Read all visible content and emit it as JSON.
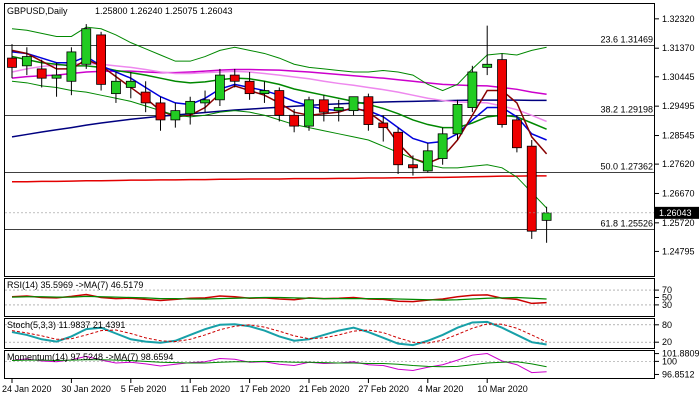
{
  "chart_data": {
    "type": "candlestick",
    "title": "GBPUSD,Daily",
    "ohlc_readout": [
      "1.25800",
      "1.26240",
      "1.25075",
      "1.26043"
    ],
    "current_price": 1.26043,
    "current_price_label": "1.26043",
    "colors": {
      "up": "#22cc22",
      "down": "#ee0000",
      "wick": "#000000",
      "price_tag_bg": "#000000",
      "price_tag_text": "#ffffff"
    },
    "y_axis": {
      "range": [
        1.24,
        1.328
      ],
      "ticks": [
        "1.32320",
        "1.31370",
        "1.30445",
        "1.29495",
        "1.28545",
        "1.27620",
        "1.26670",
        "1.25720",
        "1.24795"
      ]
    },
    "x_labels": [
      {
        "label": "24 Jan 2020",
        "index": 0
      },
      {
        "label": "30 Jan 2020",
        "index": 4
      },
      {
        "label": "5 Feb 2020",
        "index": 8
      },
      {
        "label": "11 Feb 2020",
        "index": 12
      },
      {
        "label": "17 Feb 2020",
        "index": 16
      },
      {
        "label": "21 Feb 2020",
        "index": 20
      },
      {
        "label": "27 Feb 2020",
        "index": 24
      },
      {
        "label": "4 Mar 2020",
        "index": 28
      },
      {
        "label": "10 Mar 2020",
        "index": 32
      }
    ],
    "candles": [
      {
        "o": 1.3105,
        "h": 1.315,
        "l": 1.304,
        "c": 1.3075
      },
      {
        "o": 1.308,
        "h": 1.314,
        "l": 1.305,
        "c": 1.311
      },
      {
        "o": 1.307,
        "h": 1.31,
        "l": 1.301,
        "c": 1.304
      },
      {
        "o": 1.304,
        "h": 1.309,
        "l": 1.298,
        "c": 1.305
      },
      {
        "o": 1.303,
        "h": 1.314,
        "l": 1.2985,
        "c": 1.3125
      },
      {
        "o": 1.3085,
        "h": 1.3215,
        "l": 1.307,
        "c": 1.32
      },
      {
        "o": 1.318,
        "h": 1.319,
        "l": 1.3,
        "c": 1.302
      },
      {
        "o": 1.299,
        "h": 1.306,
        "l": 1.296,
        "c": 1.303
      },
      {
        "o": 1.301,
        "h": 1.306,
        "l": 1.2975,
        "c": 1.303
      },
      {
        "o": 1.2995,
        "h": 1.303,
        "l": 1.293,
        "c": 1.296
      },
      {
        "o": 1.296,
        "h": 1.298,
        "l": 1.287,
        "c": 1.2905
      },
      {
        "o": 1.2905,
        "h": 1.296,
        "l": 1.288,
        "c": 1.2935
      },
      {
        "o": 1.2925,
        "h": 1.298,
        "l": 1.289,
        "c": 1.2965
      },
      {
        "o": 1.296,
        "h": 1.3,
        "l": 1.293,
        "c": 1.297
      },
      {
        "o": 1.297,
        "h": 1.307,
        "l": 1.295,
        "c": 1.305
      },
      {
        "o": 1.305,
        "h": 1.307,
        "l": 1.301,
        "c": 1.303
      },
      {
        "o": 1.303,
        "h": 1.306,
        "l": 1.297,
        "c": 1.299
      },
      {
        "o": 1.299,
        "h": 1.303,
        "l": 1.296,
        "c": 1.3
      },
      {
        "o": 1.3,
        "h": 1.301,
        "l": 1.29,
        "c": 1.292
      },
      {
        "o": 1.292,
        "h": 1.294,
        "l": 1.2865,
        "c": 1.2885
      },
      {
        "o": 1.2885,
        "h": 1.298,
        "l": 1.287,
        "c": 1.297
      },
      {
        "o": 1.297,
        "h": 1.2985,
        "l": 1.29,
        "c": 1.293
      },
      {
        "o": 1.2935,
        "h": 1.297,
        "l": 1.29,
        "c": 1.2945
      },
      {
        "o": 1.2935,
        "h": 1.298,
        "l": 1.292,
        "c": 1.298
      },
      {
        "o": 1.298,
        "h": 1.299,
        "l": 1.287,
        "c": 1.289
      },
      {
        "o": 1.2895,
        "h": 1.292,
        "l": 1.2835,
        "c": 1.288
      },
      {
        "o": 1.2865,
        "h": 1.288,
        "l": 1.273,
        "c": 1.276
      },
      {
        "o": 1.276,
        "h": 1.279,
        "l": 1.2725,
        "c": 1.275
      },
      {
        "o": 1.274,
        "h": 1.283,
        "l": 1.2735,
        "c": 1.2805
      },
      {
        "o": 1.278,
        "h": 1.288,
        "l": 1.276,
        "c": 1.286
      },
      {
        "o": 1.286,
        "h": 1.297,
        "l": 1.284,
        "c": 1.2955
      },
      {
        "o": 1.2945,
        "h": 1.308,
        "l": 1.293,
        "c": 1.306
      },
      {
        "o": 1.3075,
        "h": 1.321,
        "l": 1.305,
        "c": 1.3085
      },
      {
        "o": 1.31,
        "h": 1.312,
        "l": 1.288,
        "c": 1.289
      },
      {
        "o": 1.2905,
        "h": 1.292,
        "l": 1.28,
        "c": 1.2815
      },
      {
        "o": 1.282,
        "h": 1.284,
        "l": 1.252,
        "c": 1.2545
      },
      {
        "o": 1.258,
        "h": 1.2624,
        "l": 1.25075,
        "c": 1.26043
      }
    ],
    "overlays": [
      {
        "color": "#e40000",
        "width": 1.5,
        "values": [
          1.2705,
          1.2705,
          1.2706,
          1.2706,
          1.2707,
          1.2708,
          1.2708,
          1.2709,
          1.271,
          1.271,
          1.2711,
          1.2711,
          1.2712,
          1.2712,
          1.2713,
          1.2713,
          1.2714,
          1.2714,
          1.2714,
          1.2715,
          1.2715,
          1.2715,
          1.2716,
          1.2716,
          1.2717,
          1.2717,
          1.2718,
          1.2718,
          1.2719,
          1.2719,
          1.272,
          1.2721,
          1.2722,
          1.2723,
          1.2723,
          1.2724,
          1.2724
        ]
      },
      {
        "color": "#000080",
        "width": 1.5,
        "values": [
          1.285,
          1.2858,
          1.2866,
          1.2873,
          1.288,
          1.2888,
          1.2895,
          1.2901,
          1.2907,
          1.2912,
          1.2917,
          1.2921,
          1.2925,
          1.2929,
          1.2933,
          1.2937,
          1.294,
          1.2943,
          1.2946,
          1.2949,
          1.2952,
          1.2955,
          1.2957,
          1.2959,
          1.2961,
          1.2963,
          1.2964,
          1.2965,
          1.2966,
          1.2967,
          1.2968,
          1.2969,
          1.2969,
          1.2969,
          1.2969,
          1.2968,
          1.2968
        ]
      },
      {
        "color": "#cc00cc",
        "width": 1.5,
        "values": [
          1.304,
          1.3045,
          1.3048,
          1.305,
          1.3055,
          1.306,
          1.3062,
          1.3063,
          1.3063,
          1.306,
          1.3058,
          1.3058,
          1.306,
          1.3063,
          1.3066,
          1.3068,
          1.3068,
          1.3067,
          1.3066,
          1.3063,
          1.306,
          1.3056,
          1.3052,
          1.3048,
          1.3044,
          1.304,
          1.3035,
          1.303,
          1.3025,
          1.302,
          1.3018,
          1.3016,
          1.3015,
          1.301,
          1.3004,
          1.2995,
          1.2988
        ]
      },
      {
        "color": "#ee88ee",
        "width": 1.5,
        "values": [
          1.306,
          1.307,
          1.3078,
          1.3082,
          1.3085,
          1.3088,
          1.3085,
          1.308,
          1.3075,
          1.3068,
          1.306,
          1.3055,
          1.3055,
          1.3058,
          1.306,
          1.3062,
          1.306,
          1.3055,
          1.305,
          1.3044,
          1.3038,
          1.303,
          1.3023,
          1.3017,
          1.301,
          1.3003,
          1.2995,
          1.2985,
          1.2975,
          1.2968,
          1.2963,
          1.2962,
          1.296,
          1.295,
          1.2938,
          1.292,
          1.29
        ]
      },
      {
        "color": "#008800",
        "width": 1.5,
        "values": [
          1.311,
          1.31,
          1.309,
          1.3085,
          1.308,
          1.308,
          1.3075,
          1.3065,
          1.3058,
          1.305,
          1.304,
          1.303,
          1.3025,
          1.3028,
          1.3035,
          1.304,
          1.3038,
          1.303,
          1.302,
          1.3005,
          1.2995,
          1.2985,
          1.2975,
          1.2965,
          1.2955,
          1.2942,
          1.2925,
          1.2905,
          1.289,
          1.288,
          1.288,
          1.2895,
          1.2915,
          1.292,
          1.2915,
          1.2895,
          1.2875
        ]
      },
      {
        "color": "#0000dd",
        "width": 1.5,
        "values": [
          1.3125,
          1.312,
          1.3105,
          1.309,
          1.309,
          1.311,
          1.308,
          1.306,
          1.304,
          1.301,
          1.298,
          1.296,
          1.2955,
          1.2975,
          1.3005,
          1.302,
          1.301,
          1.3,
          1.2985,
          1.2965,
          1.295,
          1.294,
          1.2935,
          1.294,
          1.2935,
          1.2915,
          1.288,
          1.2845,
          1.283,
          1.2835,
          1.286,
          1.2905,
          1.2945,
          1.2945,
          1.2915,
          1.286,
          1.284
        ]
      },
      {
        "color": "#880000",
        "width": 1.5,
        "values": [
          1.313,
          1.312,
          1.3095,
          1.307,
          1.307,
          1.31,
          1.308,
          1.3045,
          1.301,
          1.2975,
          1.2935,
          1.2915,
          1.292,
          1.2945,
          1.299,
          1.3015,
          1.3,
          1.2985,
          1.296,
          1.293,
          1.292,
          1.2925,
          1.293,
          1.2945,
          1.293,
          1.2895,
          1.283,
          1.278,
          1.2765,
          1.2785,
          1.284,
          1.292,
          1.3,
          1.3,
          1.296,
          1.285,
          1.2795
        ]
      },
      {
        "color": "#008800",
        "width": 1,
        "values": [
          1.32,
          1.3195,
          1.3185,
          1.3175,
          1.3175,
          1.3205,
          1.32,
          1.318,
          1.3155,
          1.3135,
          1.3115,
          1.3095,
          1.3095,
          1.311,
          1.313,
          1.314,
          1.313,
          1.312,
          1.3105,
          1.3085,
          1.3075,
          1.307,
          1.3065,
          1.306,
          1.306,
          1.3065,
          1.306,
          1.305,
          1.302,
          1.3,
          1.302,
          1.307,
          1.3115,
          1.312,
          1.3115,
          1.313,
          1.314
        ]
      },
      {
        "color": "#008800",
        "width": 1,
        "values": [
          1.303,
          1.3025,
          1.3015,
          1.301,
          1.3,
          1.2995,
          1.2985,
          1.2975,
          1.2965,
          1.295,
          1.2935,
          1.292,
          1.2915,
          1.292,
          1.293,
          1.2935,
          1.293,
          1.292,
          1.2905,
          1.289,
          1.288,
          1.287,
          1.286,
          1.285,
          1.284,
          1.282,
          1.28,
          1.278,
          1.276,
          1.275,
          1.275,
          1.2755,
          1.276,
          1.275,
          1.272,
          1.267,
          1.262
        ]
      }
    ],
    "levels": [
      {
        "value": 1.31469,
        "label": "23.6 1.31469"
      },
      {
        "value": 1.29198,
        "label": "38.2 1.29198"
      },
      {
        "value": 1.27362,
        "label": "50.0 1.27362"
      },
      {
        "value": 1.25526,
        "label": "61.8 1.25526"
      }
    ],
    "indicators": [
      {
        "name": "RSI(14) 35.5969  ->MA(7) 46.5179",
        "range": [
          0,
          100
        ],
        "ticks": [
          {
            "v": 70,
            "label": "70"
          },
          {
            "v": 50,
            "label": "50"
          },
          {
            "v": 30,
            "label": "30"
          }
        ],
        "levels": [
          70,
          30
        ],
        "series": [
          {
            "color": "#cc0000",
            "width": 1.5,
            "values": [
              52,
              54,
              50,
              49,
              53,
              58,
              50,
              47,
              48,
              45,
              42,
              45,
              48,
              49,
              54,
              52,
              48,
              49,
              46,
              44,
              49,
              47,
              48,
              50,
              46,
              45,
              40,
              39,
              43,
              46,
              52,
              56,
              57,
              48,
              45,
              34,
              36
            ]
          },
          {
            "color": "#008800",
            "width": 1.2,
            "values": [
              51,
              52,
              52,
              51,
              51,
              53,
              52,
              51,
              50,
              49,
              47,
              47,
              46,
              46,
              47,
              48,
              49,
              50,
              50,
              49,
              48,
              47,
              47,
              47,
              47,
              47,
              46,
              45,
              44,
              43,
              44,
              46,
              48,
              49,
              50,
              48,
              46
            ]
          }
        ]
      },
      {
        "name": "Stoch(5,3,3) 11.9837 21.4391",
        "range": [
          0,
          100
        ],
        "ticks": [
          {
            "v": 80,
            "label": "80"
          },
          {
            "v": 20,
            "label": "20"
          }
        ],
        "levels": [
          80,
          20
        ],
        "series": [
          {
            "color": "#17a0a8",
            "width": 2,
            "values": [
              55,
              45,
              30,
              22,
              40,
              65,
              70,
              50,
              30,
              22,
              18,
              25,
              45,
              65,
              80,
              82,
              75,
              60,
              40,
              25,
              30,
              45,
              60,
              70,
              55,
              35,
              15,
              10,
              25,
              45,
              70,
              88,
              90,
              70,
              45,
              20,
              12
            ]
          },
          {
            "color": "#cc0000",
            "width": 1,
            "dash": "3,2",
            "values": [
              60,
              52,
              42,
              30,
              32,
              45,
              60,
              62,
              50,
              35,
              25,
              22,
              30,
              45,
              63,
              75,
              80,
              72,
              58,
              42,
              32,
              35,
              45,
              58,
              62,
              53,
              35,
              20,
              17,
              27,
              47,
              68,
              83,
              82,
              68,
              45,
              21
            ]
          }
        ]
      },
      {
        "name": "Momentum(14) 97.5248  ->MA(7) 98.6594",
        "range": [
          96.0,
          102.5
        ],
        "ticks": [
          {
            "v": 101.8809,
            "label": "101.8809"
          },
          {
            "v": 100,
            "label": "100"
          },
          {
            "v": 96.8512,
            "label": "96.8512"
          }
        ],
        "levels": [
          100
        ],
        "series": [
          {
            "color": "#cc00cc",
            "width": 1,
            "values": [
              100.2,
              100.6,
              100.1,
              99.9,
              100.4,
              101.2,
              100.3,
              99.6,
              99.8,
              99.4,
              98.9,
              99.3,
              99.7,
              99.9,
              100.7,
              100.5,
              99.8,
              99.9,
              99.3,
              99.0,
              99.8,
              99.5,
              99.6,
              99.9,
              99.2,
              99.0,
              98.1,
              97.8,
              98.6,
              99.2,
              100.3,
              101.5,
              101.9,
              100.1,
              99.2,
              97.3,
              97.5
            ]
          },
          {
            "color": "#008800",
            "width": 1,
            "values": [
              100.2,
              100.3,
              100.3,
              100.2,
              100.3,
              100.4,
              100.4,
              100.3,
              100.2,
              100.0,
              99.8,
              99.7,
              99.6,
              99.6,
              99.8,
              99.9,
              99.9,
              100.0,
              99.9,
              99.8,
              99.8,
              99.7,
              99.6,
              99.6,
              99.5,
              99.5,
              99.3,
              99.0,
              98.8,
              98.7,
              98.8,
              99.2,
              99.6,
              99.8,
              99.9,
              99.4,
              98.7
            ]
          }
        ]
      }
    ]
  }
}
